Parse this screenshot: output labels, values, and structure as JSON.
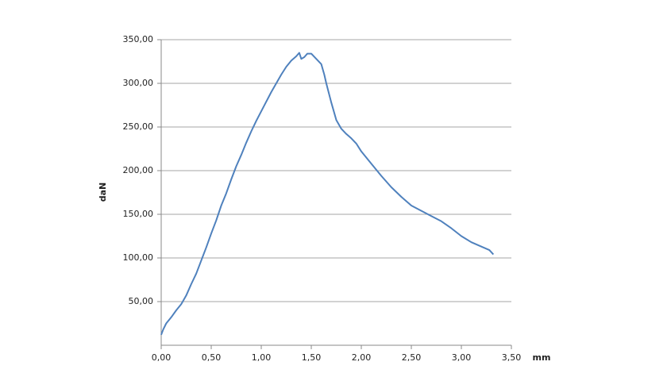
{
  "chart_data": {
    "type": "line",
    "x_label": "mm",
    "y_label": "daN",
    "x": [
      0,
      0.02,
      0.05,
      0.1,
      0.15,
      0.2,
      0.25,
      0.3,
      0.35,
      0.4,
      0.45,
      0.5,
      0.55,
      0.6,
      0.65,
      0.7,
      0.75,
      0.8,
      0.85,
      0.9,
      0.95,
      1.0,
      1.05,
      1.1,
      1.15,
      1.2,
      1.25,
      1.3,
      1.35,
      1.38,
      1.4,
      1.43,
      1.46,
      1.5,
      1.55,
      1.6,
      1.63,
      1.65,
      1.7,
      1.75,
      1.8,
      1.85,
      1.9,
      1.95,
      2.0,
      2.1,
      2.2,
      2.3,
      2.4,
      2.5,
      2.6,
      2.7,
      2.8,
      2.9,
      3.0,
      3.1,
      3.2,
      3.28,
      3.32
    ],
    "values": [
      12,
      18,
      25,
      32,
      40,
      47,
      57,
      70,
      82,
      97,
      112,
      128,
      143,
      160,
      174,
      190,
      205,
      218,
      232,
      245,
      257,
      268,
      279,
      290,
      300,
      310,
      319,
      326,
      331,
      335,
      328,
      330,
      334,
      334,
      328,
      322,
      310,
      300,
      278,
      258,
      248,
      242,
      237,
      231,
      222,
      208,
      194,
      181,
      170,
      160,
      154,
      148,
      142,
      134,
      125,
      118,
      113,
      109,
      104
    ],
    "color": "#4f81bd",
    "xlim": [
      0,
      3.5
    ],
    "xticks": [
      {
        "value": 0,
        "label": "0,00"
      },
      {
        "value": 0.5,
        "label": "0,50"
      },
      {
        "value": 1,
        "label": "1,00"
      },
      {
        "value": 1.5,
        "label": "1,50"
      },
      {
        "value": 2,
        "label": "2,00"
      },
      {
        "value": 2.5,
        "label": "2,50"
      },
      {
        "value": 3,
        "label": "3,00"
      },
      {
        "value": 3.5,
        "label": "3,50"
      }
    ],
    "ylim": [
      0,
      350
    ],
    "yticks": [
      {
        "value": 50,
        "label": "50,00"
      },
      {
        "value": 100,
        "label": "100,00"
      },
      {
        "value": 150,
        "label": "150,00"
      },
      {
        "value": 200,
        "label": "200,00"
      },
      {
        "value": 250,
        "label": "250,00"
      },
      {
        "value": 300,
        "label": "300,00"
      },
      {
        "value": 350,
        "label": "350,00"
      }
    ],
    "grid": true
  }
}
